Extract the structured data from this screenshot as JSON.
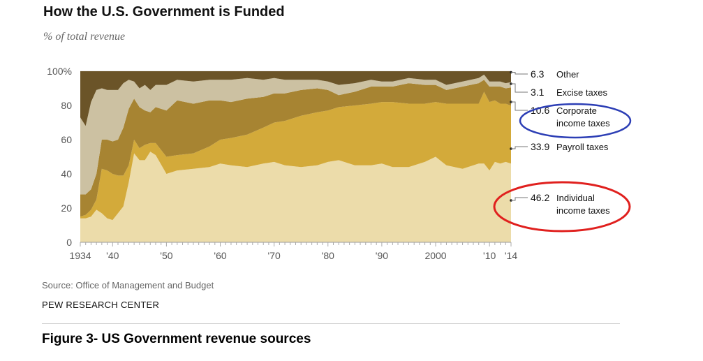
{
  "title": "How the U.S. Government is Funded",
  "subtitle": "% of total revenue",
  "source": "Source: Office of Management and Budget",
  "organization": "PEW RESEARCH CENTER",
  "caption": "Figure 3- US Government revenue sources",
  "colors": {
    "individual": "#ecdcaa",
    "payroll": "#d3aa3a",
    "corporate": "#a78432",
    "excise": "#ccc1a2",
    "other": "#6b5428",
    "highlight_individual": "#e0201e",
    "highlight_corporate": "#2c3eb5"
  },
  "chart_data": {
    "type": "area",
    "stacked": true,
    "ylabel": "",
    "xlabel": "",
    "ylim": [
      0,
      100
    ],
    "xlim": [
      1934,
      2014
    ],
    "y_ticks": [
      "0",
      "20",
      "40",
      "60",
      "80",
      "100%"
    ],
    "y_tick_values": [
      0,
      20,
      40,
      60,
      80,
      100
    ],
    "x_ticks": [
      "1934",
      "'40",
      "'50",
      "'60",
      "'70",
      "'80",
      "'90",
      "2000",
      "'10",
      "'14"
    ],
    "x_tick_values": [
      1934,
      1940,
      1950,
      1960,
      1970,
      1980,
      1990,
      2000,
      2010,
      2014
    ],
    "x": [
      1934,
      1935,
      1936,
      1937,
      1938,
      1939,
      1940,
      1941,
      1942,
      1943,
      1944,
      1945,
      1946,
      1947,
      1948,
      1950,
      1952,
      1955,
      1958,
      1960,
      1962,
      1965,
      1968,
      1970,
      1972,
      1975,
      1978,
      1980,
      1982,
      1985,
      1988,
      1990,
      1992,
      1995,
      1998,
      2000,
      2002,
      2005,
      2008,
      2009,
      2010,
      2011,
      2012,
      2013,
      2014
    ],
    "series": [
      {
        "name": "Individual income taxes",
        "values": [
          14,
          14,
          15,
          19,
          17,
          14,
          13,
          17,
          21,
          35,
          52,
          48,
          48,
          53,
          51,
          40,
          42,
          43,
          44,
          46,
          45,
          44,
          46,
          47,
          45,
          44,
          45,
          47,
          48,
          45,
          45,
          46,
          44,
          44,
          47,
          50,
          45,
          43,
          46,
          46,
          42,
          47,
          46,
          47,
          46
        ]
      },
      {
        "name": "Payroll taxes",
        "values": [
          1,
          2,
          4,
          6,
          26,
          28,
          27,
          22,
          18,
          10,
          8,
          7,
          9,
          5,
          7,
          10,
          9,
          9,
          12,
          14,
          16,
          19,
          21,
          23,
          26,
          30,
          31,
          30,
          31,
          35,
          36,
          36,
          38,
          37,
          34,
          32,
          36,
          38,
          35,
          42,
          40,
          36,
          35,
          34,
          33.9
        ]
      },
      {
        "name": "Corporate income taxes",
        "values": [
          13,
          12,
          12,
          15,
          17,
          18,
          19,
          21,
          28,
          33,
          24,
          24,
          20,
          18,
          21,
          27,
          32,
          29,
          27,
          23,
          21,
          21,
          18,
          17,
          16,
          15,
          14,
          12,
          7,
          8,
          10,
          9,
          9,
          12,
          11,
          10,
          8,
          10,
          12,
          7,
          9,
          8,
          10,
          9,
          10.6
        ]
      },
      {
        "name": "Excise taxes",
        "values": [
          45,
          40,
          51,
          49,
          30,
          29,
          30,
          29,
          26,
          17,
          10,
          11,
          15,
          13,
          13,
          15,
          12,
          13,
          12,
          12,
          13,
          12,
          10,
          9,
          8,
          6,
          5,
          5,
          6,
          5,
          4,
          3,
          3,
          3,
          3,
          3,
          3,
          3,
          3,
          3,
          3,
          3,
          3,
          3,
          3.1
        ]
      },
      {
        "name": "Other",
        "values": [
          27,
          32,
          18,
          11,
          10,
          11,
          11,
          11,
          7,
          5,
          6,
          10,
          8,
          11,
          8,
          8,
          5,
          6,
          5,
          5,
          5,
          4,
          5,
          4,
          5,
          5,
          5,
          6,
          8,
          7,
          5,
          6,
          6,
          4,
          5,
          5,
          8,
          6,
          4,
          2,
          6,
          6,
          6,
          7,
          6.3
        ]
      }
    ],
    "end_labels": [
      {
        "value": "6.3",
        "label_lines": [
          "Other"
        ]
      },
      {
        "value": "3.1",
        "label_lines": [
          "Excise taxes"
        ]
      },
      {
        "value": "10.6",
        "label_lines": [
          "Corporate",
          "income taxes"
        ]
      },
      {
        "value": "33.9",
        "label_lines": [
          "Payroll taxes"
        ]
      },
      {
        "value": "46.2",
        "label_lines": [
          "Individual",
          "income taxes"
        ]
      }
    ]
  }
}
